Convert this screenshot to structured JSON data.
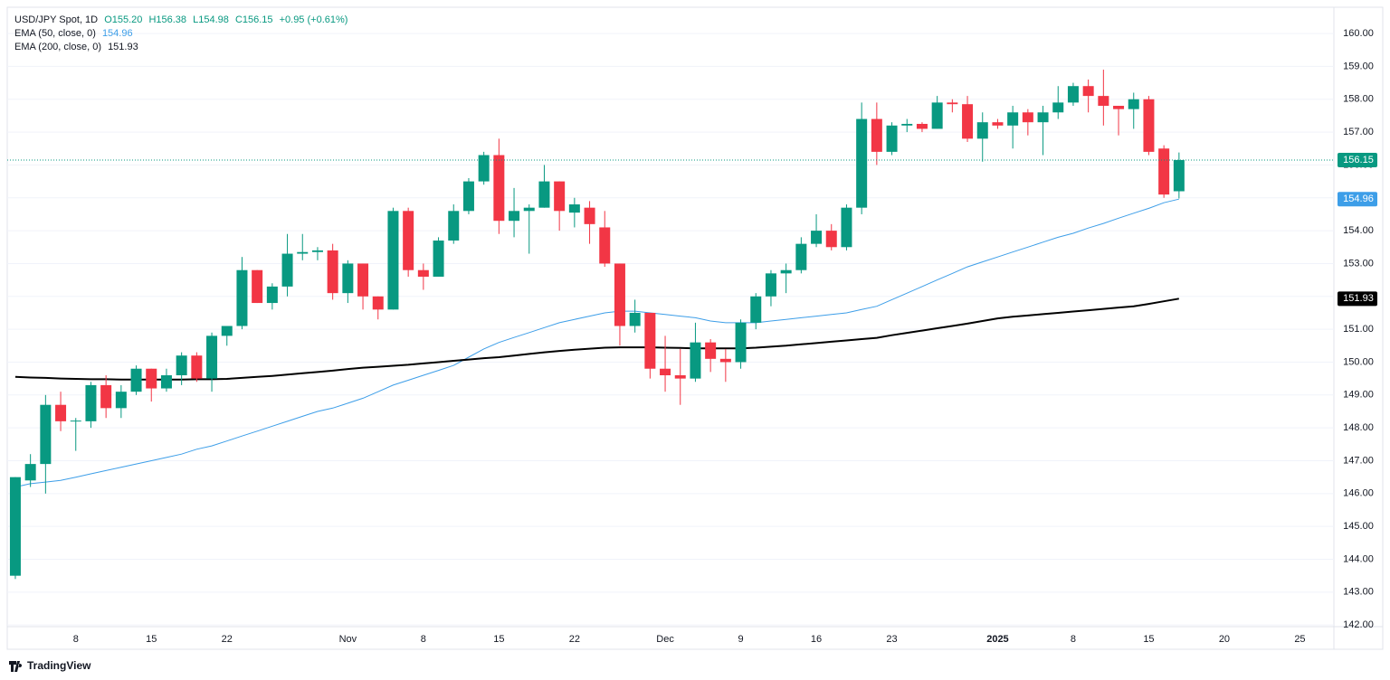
{
  "chart_data": {
    "type": "candlestick",
    "title": "USD/JPY Spot, 1D",
    "header_values": [
      "O155.20",
      "H156.38",
      "L154.98",
      "C156.15",
      "+0.95 (+0.61%)"
    ],
    "categories": [
      null,
      null,
      null,
      null,
      "8",
      null,
      null,
      null,
      null,
      "15",
      null,
      null,
      null,
      null,
      "22",
      null,
      null,
      null,
      null,
      null,
      null,
      null,
      "Nov",
      null,
      null,
      null,
      null,
      "8",
      null,
      null,
      null,
      null,
      "15",
      null,
      null,
      null,
      null,
      "22",
      null,
      null,
      null,
      null,
      null,
      "Dec",
      null,
      null,
      null,
      null,
      "9",
      null,
      null,
      null,
      null,
      "16",
      null,
      null,
      null,
      null,
      "23",
      null,
      null,
      null,
      null,
      null,
      null,
      "2025",
      null,
      null,
      null,
      null,
      "8",
      null,
      null,
      null,
      null,
      "15",
      null,
      null,
      null,
      null,
      "20",
      null,
      null,
      null,
      null,
      "25",
      null
    ],
    "open": [
      143.5,
      146.4,
      146.9,
      148.7,
      148.2,
      148.2,
      149.3,
      148.6,
      149.1,
      149.8,
      149.2,
      149.6,
      150.2,
      149.5,
      150.8,
      151.1,
      152.8,
      151.8,
      152.3,
      153.3,
      153.35,
      153.4,
      152.1,
      153.0,
      152.0,
      151.6,
      154.6,
      152.8,
      152.6,
      153.7,
      154.6,
      155.5,
      156.3,
      154.3,
      154.6,
      154.7,
      155.5,
      154.55,
      154.7,
      154.1,
      153.0,
      151.1,
      151.5,
      149.8,
      149.6,
      149.5,
      150.6,
      150.1,
      150.0,
      151.2,
      152.0,
      152.7,
      152.8,
      153.6,
      154.0,
      153.5,
      154.7,
      157.4,
      156.4,
      157.2,
      157.25,
      157.1,
      157.9,
      157.85,
      156.8,
      157.3,
      157.2,
      157.6,
      157.3,
      157.6,
      157.9,
      158.4,
      158.1,
      157.8,
      157.7,
      158.0,
      156.5,
      155.2,
      null,
      null,
      null,
      null,
      null,
      null,
      null,
      null,
      null
    ],
    "high": [
      146.5,
      147.2,
      149.0,
      149.1,
      148.3,
      149.4,
      149.6,
      149.3,
      149.9,
      149.8,
      149.8,
      150.3,
      150.3,
      150.9,
      151.1,
      153.2,
      152.8,
      152.4,
      153.9,
      153.9,
      153.5,
      153.6,
      153.1,
      153.0,
      152.0,
      154.7,
      154.7,
      153.0,
      153.8,
      154.8,
      155.6,
      156.4,
      156.8,
      155.3,
      154.8,
      156.0,
      155.5,
      155.0,
      154.9,
      154.6,
      153.0,
      151.9,
      151.5,
      150.8,
      150.4,
      151.2,
      150.7,
      150.4,
      151.3,
      152.1,
      152.8,
      153.0,
      153.8,
      154.5,
      154.2,
      154.8,
      157.9,
      157.9,
      157.3,
      157.4,
      157.3,
      158.1,
      158.0,
      158.1,
      157.6,
      157.4,
      157.8,
      157.7,
      157.8,
      158.4,
      158.5,
      158.6,
      158.9,
      157.8,
      158.2,
      158.1,
      156.6,
      156.38,
      null,
      null,
      null,
      null,
      null,
      null,
      null,
      null,
      null
    ],
    "low": [
      143.4,
      146.2,
      146.0,
      147.9,
      147.3,
      148.0,
      148.3,
      148.3,
      149.0,
      148.8,
      149.1,
      149.3,
      149.4,
      149.1,
      150.5,
      151.0,
      151.8,
      151.6,
      152.0,
      153.1,
      153.1,
      151.9,
      151.8,
      151.6,
      151.3,
      151.6,
      152.6,
      152.2,
      152.6,
      153.6,
      154.5,
      155.4,
      153.9,
      153.8,
      153.3,
      154.7,
      154.0,
      154.1,
      153.6,
      152.9,
      150.5,
      150.9,
      149.5,
      149.1,
      148.7,
      149.4,
      149.7,
      149.4,
      149.8,
      151.0,
      151.7,
      152.1,
      152.7,
      153.5,
      153.4,
      153.4,
      154.5,
      156.0,
      156.3,
      157.0,
      157.0,
      157.1,
      157.6,
      156.7,
      156.1,
      157.1,
      156.5,
      156.9,
      156.3,
      157.4,
      157.8,
      157.6,
      157.2,
      156.9,
      157.1,
      156.3,
      155.0,
      154.98,
      null,
      null,
      null,
      null,
      null,
      null,
      null,
      null,
      null
    ],
    "close": [
      146.5,
      146.9,
      148.7,
      148.2,
      148.22,
      149.3,
      148.6,
      149.1,
      149.8,
      149.2,
      149.6,
      150.2,
      149.5,
      150.8,
      151.1,
      152.8,
      151.8,
      152.3,
      153.3,
      153.35,
      153.4,
      152.1,
      153.0,
      152.0,
      151.6,
      154.6,
      152.8,
      152.6,
      153.7,
      154.6,
      155.5,
      156.3,
      154.3,
      154.6,
      154.7,
      155.5,
      154.6,
      154.8,
      154.2,
      153.0,
      151.1,
      151.5,
      149.8,
      149.6,
      149.5,
      150.6,
      150.1,
      150.0,
      151.2,
      152.0,
      152.7,
      152.8,
      153.6,
      154.0,
      153.5,
      154.7,
      157.4,
      156.4,
      157.2,
      157.25,
      157.1,
      157.9,
      157.85,
      156.8,
      157.3,
      157.2,
      157.6,
      157.3,
      157.6,
      157.9,
      158.4,
      158.1,
      157.8,
      157.7,
      158.0,
      156.4,
      155.1,
      156.15,
      null,
      null,
      null,
      null,
      null,
      null,
      null,
      null,
      null
    ],
    "up_color": "#089981",
    "down_color": "#f23645",
    "series": [
      {
        "name": "EMA (50, close, 0)",
        "color": "#3d9ee8",
        "values": [
          146.2,
          146.3,
          146.35,
          146.4,
          146.5,
          146.6,
          146.7,
          146.8,
          146.9,
          147.0,
          147.1,
          147.2,
          147.35,
          147.45,
          147.6,
          147.75,
          147.9,
          148.05,
          148.2,
          148.35,
          148.5,
          148.6,
          148.75,
          148.9,
          149.1,
          149.3,
          149.45,
          149.6,
          149.75,
          149.9,
          150.15,
          150.4,
          150.6,
          150.75,
          150.9,
          151.05,
          151.2,
          151.3,
          151.4,
          151.5,
          151.55,
          151.55,
          151.5,
          151.45,
          151.4,
          151.35,
          151.25,
          151.2,
          151.2,
          151.2,
          151.25,
          151.3,
          151.35,
          151.4,
          151.45,
          151.5,
          151.6,
          151.7,
          151.9,
          152.1,
          152.3,
          152.5,
          152.7,
          152.9,
          153.05,
          153.2,
          153.35,
          153.5,
          153.65,
          153.8,
          153.92,
          154.08,
          154.22,
          154.38,
          154.53,
          154.68,
          154.85,
          154.96,
          null,
          null,
          null,
          null,
          null,
          null,
          null,
          null,
          null
        ]
      },
      {
        "name": "EMA (200, close, 0)",
        "color": "#000000",
        "values": [
          149.55,
          149.53,
          149.52,
          149.5,
          149.49,
          149.48,
          149.48,
          149.47,
          149.47,
          149.47,
          149.47,
          149.47,
          149.48,
          149.48,
          149.49,
          149.52,
          149.55,
          149.58,
          149.62,
          149.66,
          149.7,
          149.74,
          149.79,
          149.83,
          149.86,
          149.89,
          149.92,
          149.96,
          150.0,
          150.04,
          150.08,
          150.12,
          150.15,
          150.2,
          150.25,
          150.3,
          150.34,
          150.38,
          150.41,
          150.44,
          150.45,
          150.45,
          150.45,
          150.44,
          150.43,
          150.42,
          150.42,
          150.42,
          150.42,
          150.44,
          150.47,
          150.5,
          150.54,
          150.58,
          150.62,
          150.66,
          150.7,
          150.74,
          150.82,
          150.89,
          150.96,
          151.03,
          151.1,
          151.17,
          151.25,
          151.33,
          151.38,
          151.42,
          151.46,
          151.5,
          151.54,
          151.58,
          151.62,
          151.66,
          151.7,
          151.77,
          151.85,
          151.93,
          null,
          null,
          null,
          null,
          null,
          null,
          null,
          null,
          null
        ]
      }
    ],
    "ylim": [
      141.95,
      160.8
    ],
    "yticks": [
      {
        "value": 142,
        "label": "142.00"
      },
      {
        "value": 143,
        "label": "143.00"
      },
      {
        "value": 144,
        "label": "144.00"
      },
      {
        "value": 145,
        "label": "145.00"
      },
      {
        "value": 146,
        "label": "146.00"
      },
      {
        "value": 147,
        "label": "147.00"
      },
      {
        "value": 148,
        "label": "148.00"
      },
      {
        "value": 149,
        "label": "149.00"
      },
      {
        "value": 150,
        "label": "150.00"
      },
      {
        "value": 151,
        "label": "151.00"
      },
      {
        "value": 152,
        "label": "152.00"
      },
      {
        "value": 153,
        "label": "153.00"
      },
      {
        "value": 154,
        "label": "154.00"
      },
      {
        "value": 155,
        "label": "155.00"
      },
      {
        "value": 156,
        "label": "156.00"
      },
      {
        "value": 157,
        "label": "157.00"
      },
      {
        "value": 158,
        "label": "158.00"
      },
      {
        "value": 159,
        "label": "159.00"
      },
      {
        "value": 160,
        "label": "160.00"
      }
    ],
    "grid": true,
    "watermark": "TradingView"
  }
}
